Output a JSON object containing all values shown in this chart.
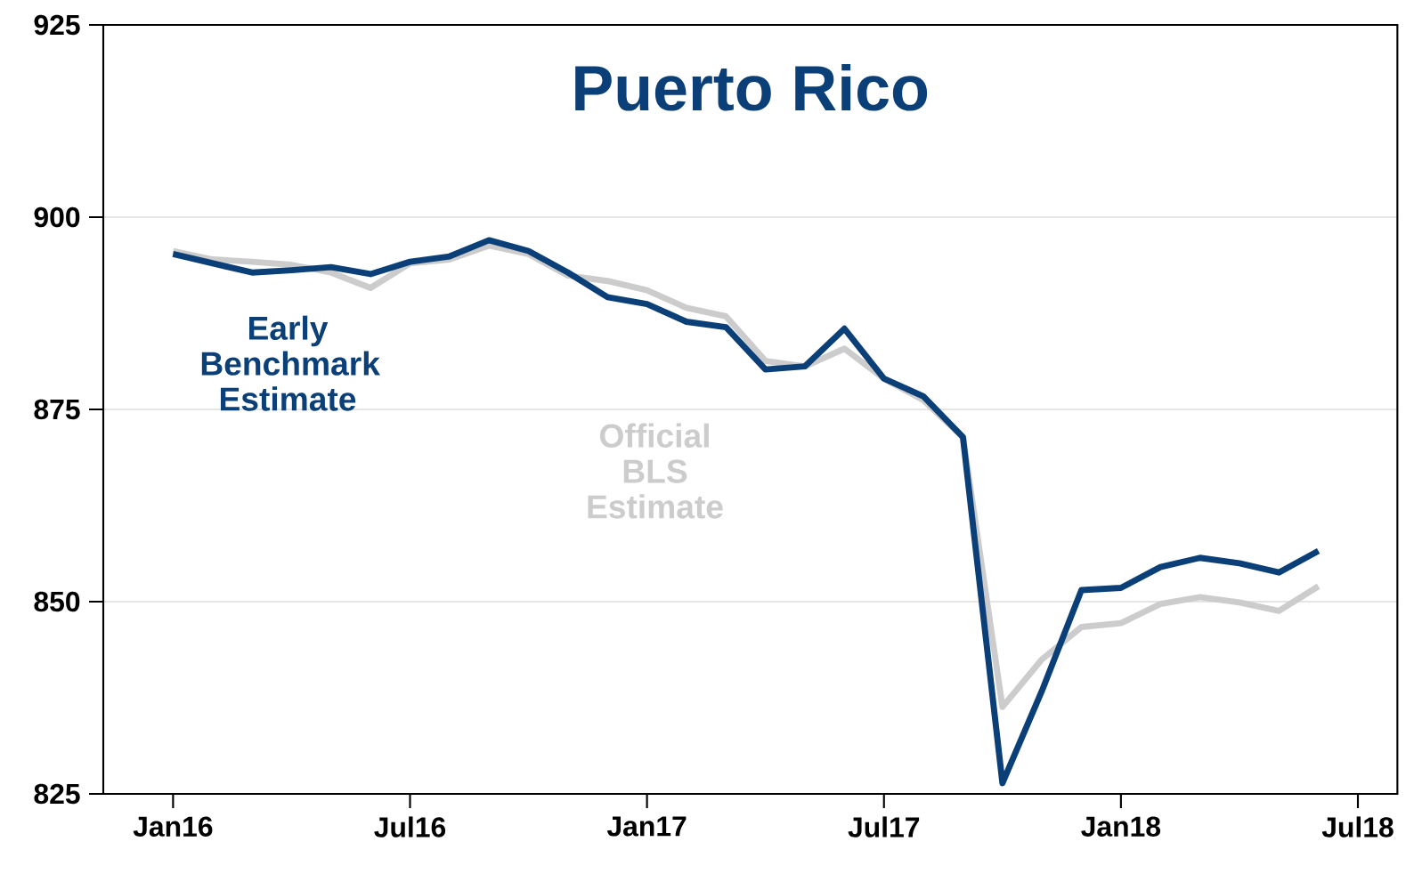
{
  "chart_data": {
    "type": "line",
    "title": "Puerto Rico",
    "x": [
      "2016-01",
      "2016-02",
      "2016-03",
      "2016-04",
      "2016-05",
      "2016-06",
      "2016-07",
      "2016-08",
      "2016-09",
      "2016-10",
      "2016-11",
      "2016-12",
      "2017-01",
      "2017-02",
      "2017-03",
      "2017-04",
      "2017-05",
      "2017-06",
      "2017-07",
      "2017-08",
      "2017-09",
      "2017-10",
      "2017-11",
      "2017-12",
      "2018-01",
      "2018-02",
      "2018-03",
      "2018-04",
      "2018-05",
      "2018-06"
    ],
    "series": [
      {
        "name": "Official BLS Estimate",
        "color": "#cccccc",
        "values": [
          895.6,
          894.5,
          894.2,
          893.8,
          892.8,
          890.8,
          894.0,
          894.5,
          896.3,
          895.2,
          892.4,
          891.7,
          890.5,
          888.2,
          887.1,
          881.3,
          880.6,
          882.9,
          879.0,
          876.2,
          871.4,
          836.3,
          842.5,
          846.7,
          847.2,
          849.7,
          850.6,
          849.9,
          848.8,
          852.0
        ]
      },
      {
        "name": "Early Benchmark Estimate",
        "color": "#0b3f78",
        "values": [
          895.2,
          894.0,
          892.8,
          893.1,
          893.5,
          892.6,
          894.2,
          894.9,
          897.0,
          895.6,
          892.8,
          889.6,
          888.7,
          886.4,
          885.7,
          880.2,
          880.6,
          885.5,
          879.0,
          876.7,
          871.4,
          826.4,
          838.4,
          851.5,
          851.8,
          854.5,
          855.7,
          855.0,
          853.8,
          856.6
        ]
      }
    ],
    "xlim": [
      "2015-11-08",
      "2018-08-01"
    ],
    "xticks": [
      {
        "value": "2016-01",
        "label": "Jan16"
      },
      {
        "value": "2016-07",
        "label": "Jul16"
      },
      {
        "value": "2017-01",
        "label": "Jan17"
      },
      {
        "value": "2017-07",
        "label": "Jul17"
      },
      {
        "value": "2018-01",
        "label": "Jan18"
      },
      {
        "value": "2018-07",
        "label": "Jul18"
      }
    ],
    "ylim": [
      825,
      925
    ],
    "yticks": [
      825,
      850,
      875,
      900,
      925
    ],
    "grid": "y",
    "legend": false,
    "marker": "none",
    "line_style": "solid"
  }
}
